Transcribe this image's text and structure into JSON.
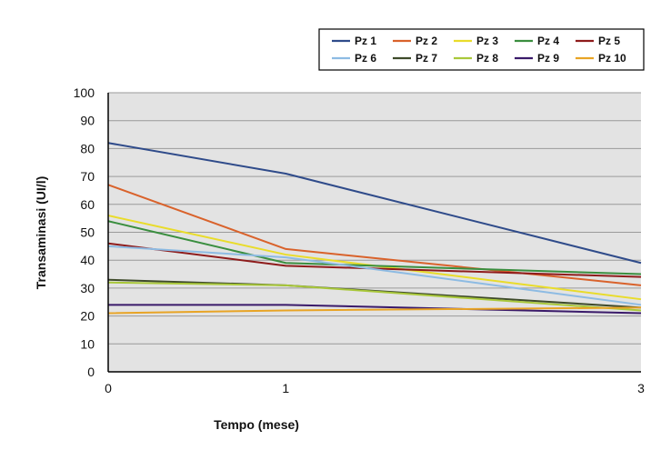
{
  "chart_data": {
    "type": "line",
    "title": "",
    "xlabel": "Tempo (mese)",
    "ylabel": "Transaminasi (UI/l)",
    "x": [
      0,
      1,
      3
    ],
    "x_tick_labels": [
      "0",
      "1",
      "3"
    ],
    "ylim": [
      0,
      100
    ],
    "y_ticks": [
      0,
      10,
      20,
      30,
      40,
      50,
      60,
      70,
      80,
      90,
      100
    ],
    "grid": true,
    "legend_position": "top-right",
    "series": [
      {
        "name": "Pz 1",
        "color": "#2F4B8A",
        "values": [
          82,
          71,
          39
        ]
      },
      {
        "name": "Pz 2",
        "color": "#D9622B",
        "values": [
          67,
          44,
          31
        ]
      },
      {
        "name": "Pz 3",
        "color": "#E9DC2A",
        "values": [
          56,
          42,
          26
        ]
      },
      {
        "name": "Pz 4",
        "color": "#3A8E3F",
        "values": [
          54,
          39,
          35
        ]
      },
      {
        "name": "Pz 5",
        "color": "#8E1B1B",
        "values": [
          46,
          38,
          34
        ]
      },
      {
        "name": "Pz 6",
        "color": "#8DBBE3",
        "values": [
          45,
          41,
          24
        ]
      },
      {
        "name": "Pz 7",
        "color": "#3E4A2A",
        "values": [
          33,
          31,
          23
        ]
      },
      {
        "name": "Pz 8",
        "color": "#A9C83A",
        "values": [
          32,
          31,
          22
        ]
      },
      {
        "name": "Pz 9",
        "color": "#3A1A6A",
        "values": [
          24,
          24,
          21
        ]
      },
      {
        "name": "Pz 10",
        "color": "#E8A425",
        "values": [
          21,
          22,
          23
        ]
      }
    ]
  }
}
